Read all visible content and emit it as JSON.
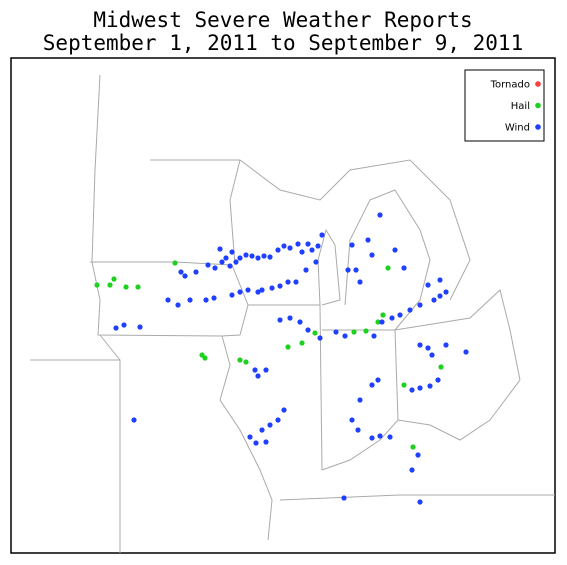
{
  "header": {
    "title": [
      "Midwest Severe Weather Reports",
      "September 1, 2011 to September 9, 2011"
    ]
  },
  "legend": [
    {
      "label": "Tornado",
      "color": "#ff3b3b"
    },
    {
      "label": "Hail",
      "color": "#1fd11f"
    },
    {
      "label": "Wind",
      "color": "#2040ff"
    }
  ]
}
